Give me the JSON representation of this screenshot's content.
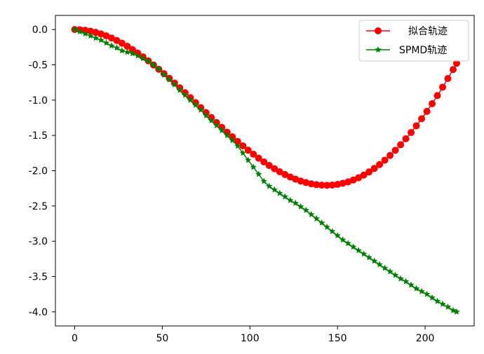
{
  "chart_data": {
    "type": "line",
    "title": "",
    "xlabel": "",
    "ylabel": "",
    "xlim": [
      -11,
      228
    ],
    "ylim": [
      -4.2,
      0.2
    ],
    "xticks": [
      0,
      50,
      100,
      150,
      200
    ],
    "yticks": [
      0.0,
      -0.5,
      -1.0,
      -1.5,
      -2.0,
      -2.5,
      -3.0,
      -3.5,
      -4.0
    ],
    "xtick_labels": [
      "0",
      "50",
      "100",
      "150",
      "200"
    ],
    "ytick_labels": [
      "0.0",
      "-0.5",
      "-1.0",
      "-1.5",
      "-2.0",
      "-2.5",
      "-3.0",
      "-3.5",
      "-4.0"
    ],
    "grid": false,
    "legend_position": "top-right",
    "series": [
      {
        "name": "拟合轨迹",
        "color": "#ff0000",
        "marker": "circle",
        "x": [
          0,
          3,
          6,
          9,
          12,
          15,
          18,
          21,
          24,
          27,
          30,
          33,
          36,
          39,
          42,
          45,
          48,
          51,
          54,
          57,
          60,
          63,
          66,
          69,
          72,
          75,
          78,
          81,
          84,
          87,
          90,
          93,
          96,
          99,
          102,
          105,
          108,
          111,
          114,
          117,
          120,
          123,
          126,
          129,
          132,
          135,
          138,
          141,
          144,
          147,
          150,
          153,
          156,
          159,
          162,
          165,
          168,
          171,
          174,
          177,
          180,
          183,
          186,
          189,
          192,
          195,
          198,
          201,
          204,
          207,
          210,
          213,
          216,
          218
        ],
        "y": [
          0.0,
          -0.003,
          -0.01,
          -0.023,
          -0.04,
          -0.062,
          -0.089,
          -0.12,
          -0.155,
          -0.194,
          -0.237,
          -0.284,
          -0.334,
          -0.387,
          -0.443,
          -0.502,
          -0.563,
          -0.626,
          -0.691,
          -0.758,
          -0.826,
          -0.895,
          -0.965,
          -1.035,
          -1.106,
          -1.177,
          -1.247,
          -1.317,
          -1.386,
          -1.454,
          -1.52,
          -1.585,
          -1.648,
          -1.709,
          -1.767,
          -1.823,
          -1.876,
          -1.926,
          -1.972,
          -2.015,
          -2.054,
          -2.089,
          -2.12,
          -2.146,
          -2.168,
          -2.186,
          -2.198,
          -2.205,
          -2.207,
          -2.203,
          -2.194,
          -2.179,
          -2.159,
          -2.132,
          -2.1,
          -2.062,
          -2.018,
          -1.968,
          -1.913,
          -1.851,
          -1.784,
          -1.711,
          -1.632,
          -1.548,
          -1.459,
          -1.364,
          -1.264,
          -1.16,
          -1.05,
          -0.936,
          -0.817,
          -0.694,
          -0.567,
          -0.478
        ],
        "display_note": ""
      },
      {
        "name": "SPMD轨迹",
        "color": "#008000",
        "marker": "star",
        "x": [
          0,
          3,
          6,
          9,
          12,
          15,
          18,
          21,
          24,
          27,
          30,
          33,
          36,
          39,
          42,
          45,
          48,
          51,
          54,
          57,
          60,
          63,
          66,
          69,
          72,
          75,
          78,
          81,
          84,
          87,
          90,
          93,
          96,
          99,
          102,
          105,
          108,
          111,
          114,
          117,
          120,
          123,
          126,
          129,
          132,
          135,
          138,
          141,
          144,
          147,
          150,
          153,
          156,
          159,
          162,
          165,
          168,
          171,
          174,
          177,
          180,
          183,
          186,
          189,
          192,
          195,
          198,
          201,
          204,
          207,
          210,
          213,
          216,
          218
        ],
        "y": [
          0.0,
          -0.03,
          -0.06,
          -0.09,
          -0.12,
          -0.15,
          -0.19,
          -0.23,
          -0.26,
          -0.3,
          -0.32,
          -0.34,
          -0.37,
          -0.41,
          -0.45,
          -0.5,
          -0.56,
          -0.64,
          -0.71,
          -0.78,
          -0.86,
          -0.93,
          -1.0,
          -1.07,
          -1.14,
          -1.22,
          -1.29,
          -1.36,
          -1.43,
          -1.5,
          -1.57,
          -1.65,
          -1.75,
          -1.85,
          -1.95,
          -2.05,
          -2.15,
          -2.22,
          -2.27,
          -2.32,
          -2.37,
          -2.42,
          -2.46,
          -2.51,
          -2.56,
          -2.62,
          -2.68,
          -2.74,
          -2.8,
          -2.86,
          -2.92,
          -2.98,
          -3.03,
          -3.08,
          -3.13,
          -3.18,
          -3.23,
          -3.28,
          -3.33,
          -3.38,
          -3.43,
          -3.48,
          -3.53,
          -3.57,
          -3.62,
          -3.67,
          -3.71,
          -3.75,
          -3.8,
          -3.85,
          -3.89,
          -3.93,
          -3.98,
          -4.0
        ]
      }
    ]
  }
}
